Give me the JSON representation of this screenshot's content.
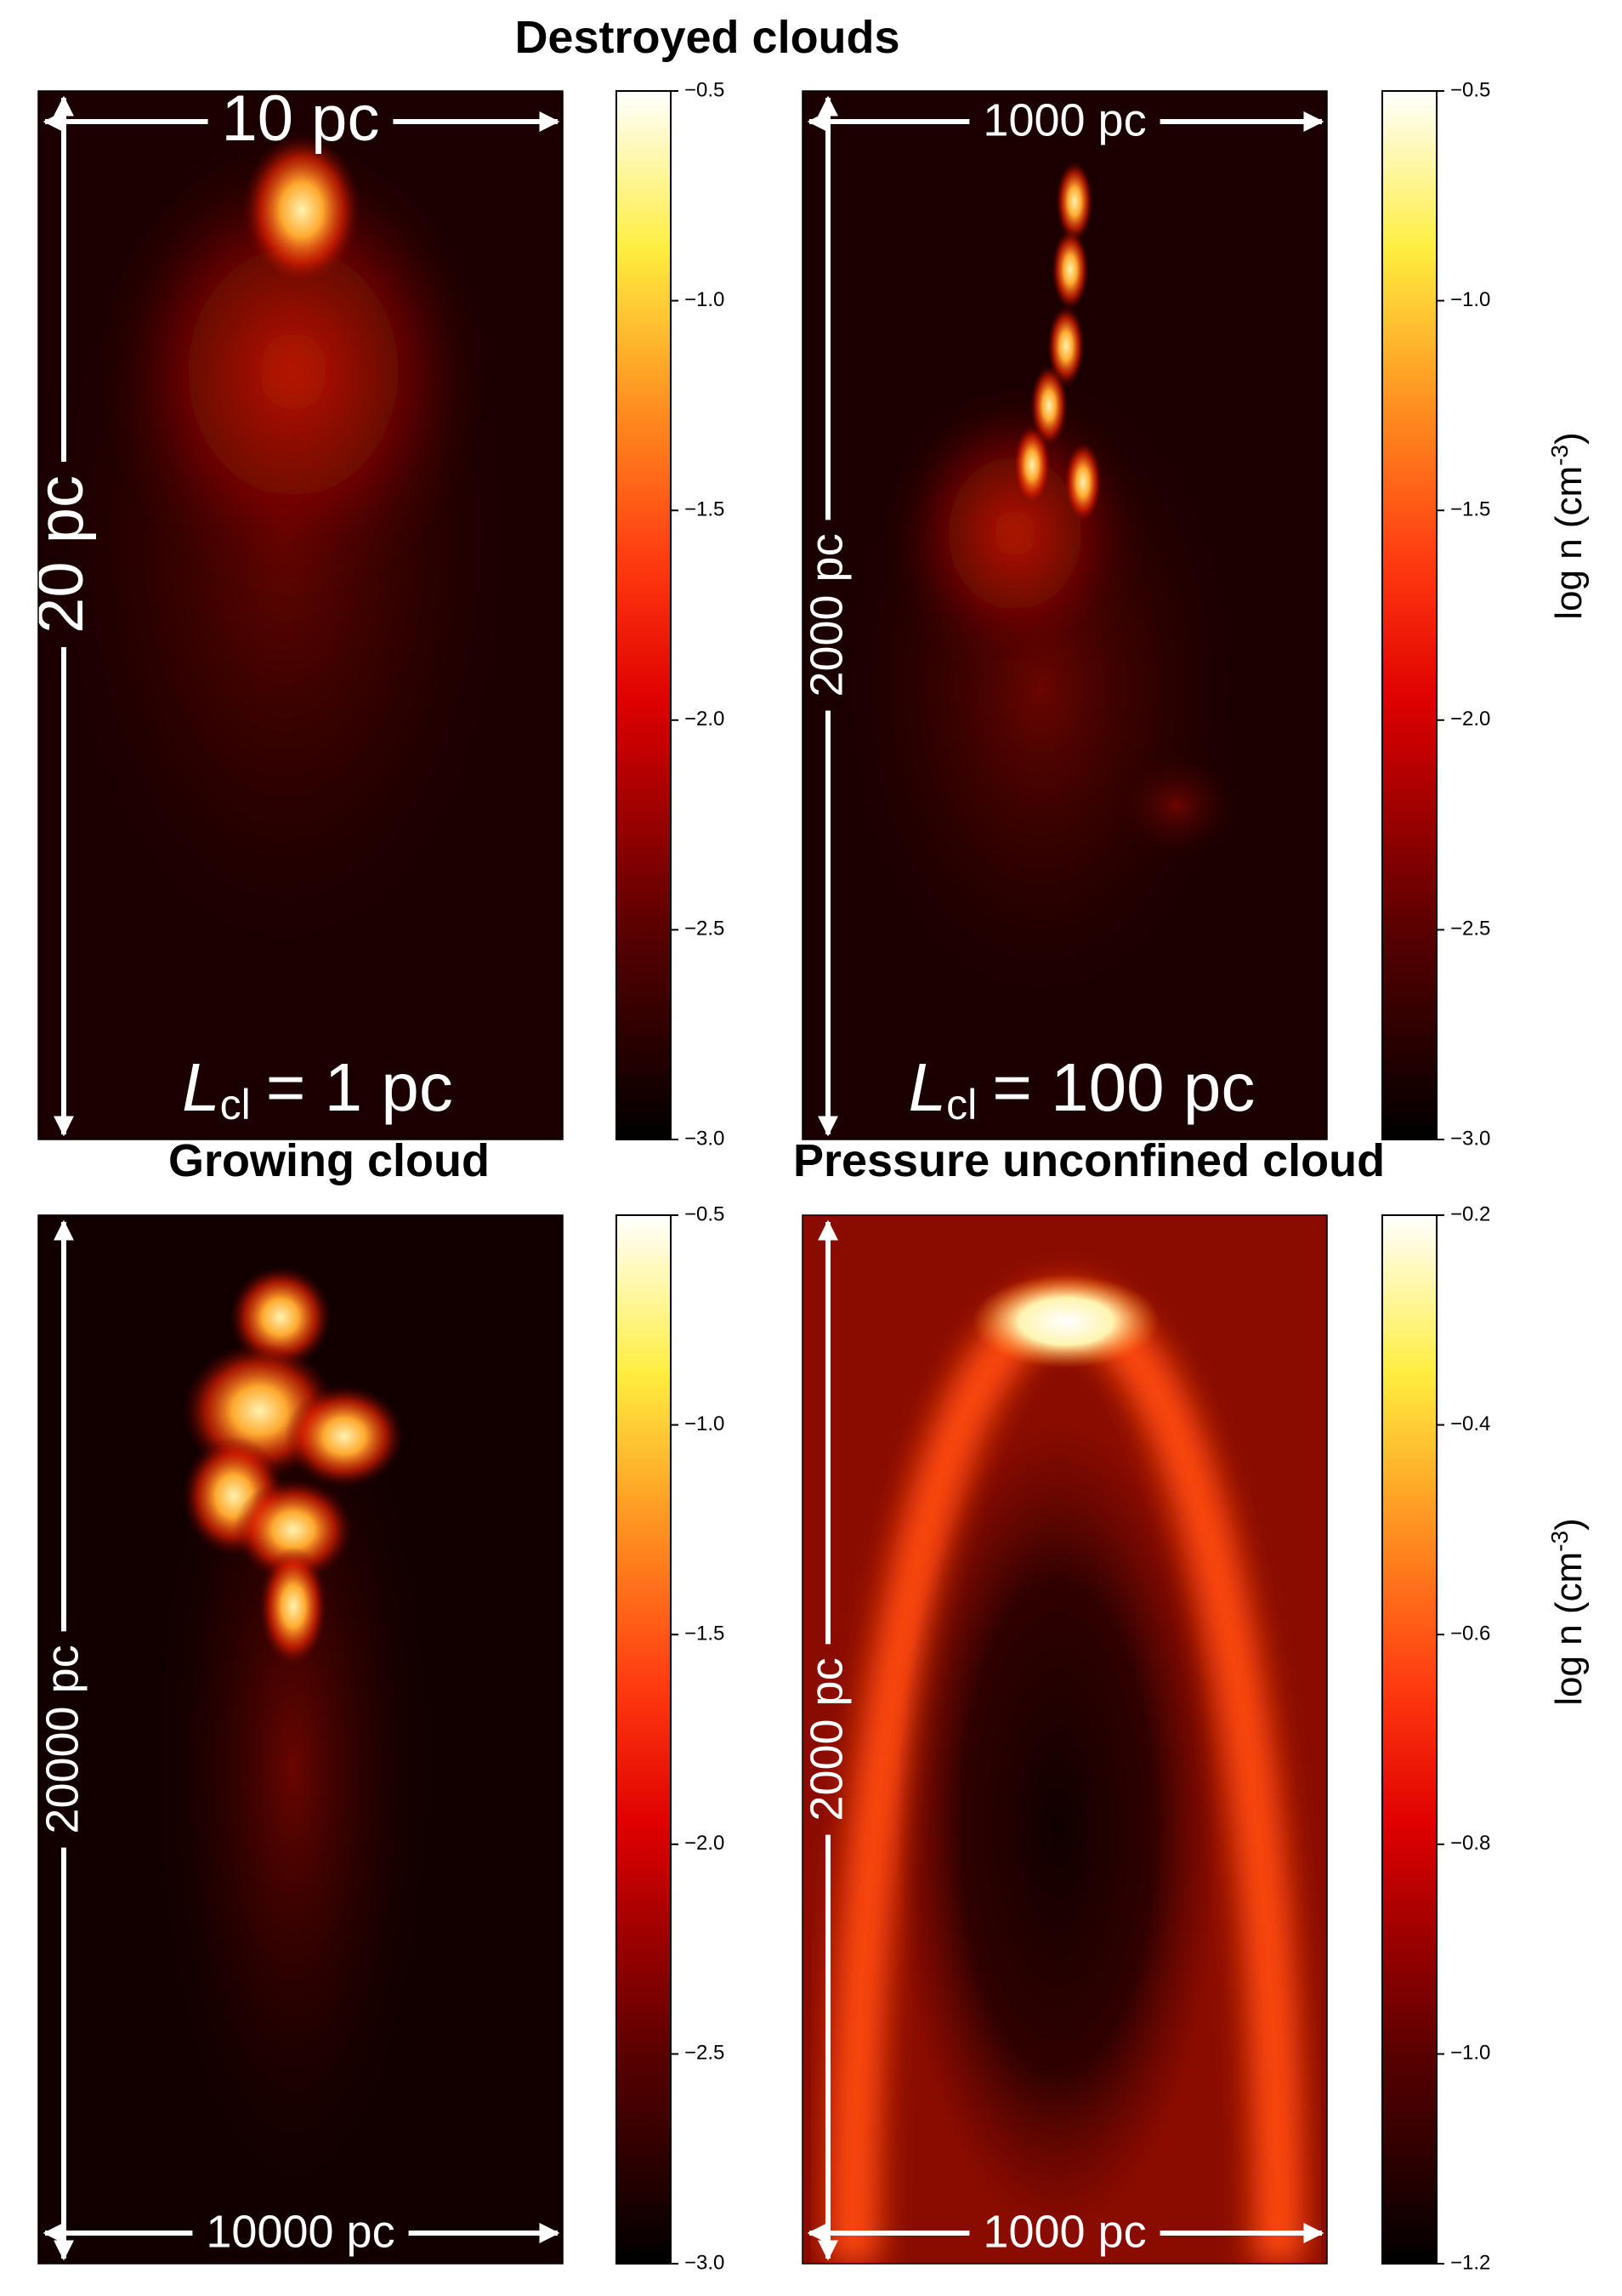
{
  "titles": [
    "Destroyed clouds",
    "Growing cloud",
    "Pressure unconfined cloud"
  ],
  "panels": [
    {
      "width_label": "10 pc",
      "height_label": "20 pc",
      "size_label": {
        "symbol": "L",
        "subscript": "cl",
        "text": "= 1 pc"
      },
      "colorbar": {
        "lim": [
          -3.0,
          -0.5
        ],
        "ticks": [
          {
            "value": -3.0,
            "label": "−3.0"
          },
          {
            "value": -2.5,
            "label": "−2.5"
          },
          {
            "value": -2.0,
            "label": "−2.0"
          },
          {
            "value": -1.5,
            "label": "−1.5"
          },
          {
            "value": -1.0,
            "label": "−1.0"
          },
          {
            "value": -0.5,
            "label": "−0.5"
          }
        ]
      }
    },
    {
      "width_label": "1000 pc",
      "height_label": "2000 pc",
      "size_label": {
        "symbol": "L",
        "subscript": "cl",
        "text": "= 100 pc"
      },
      "colorbar": {
        "lim": [
          -3.0,
          -0.5
        ],
        "ticks": [
          {
            "value": -3.0,
            "label": "−3.0"
          },
          {
            "value": -2.5,
            "label": "−2.5"
          },
          {
            "value": -2.0,
            "label": "−2.0"
          },
          {
            "value": -1.5,
            "label": "−1.5"
          },
          {
            "value": -1.0,
            "label": "−1.0"
          },
          {
            "value": -0.5,
            "label": "−0.5"
          }
        ],
        "label": {
          "text": "log n (cm",
          "superscript": "-3",
          "close": ")"
        }
      }
    },
    {
      "width_label": "10000 pc",
      "height_label": "20000 pc",
      "colorbar": {
        "lim": [
          -3.0,
          -0.5
        ],
        "ticks": [
          {
            "value": -3.0,
            "label": "−3.0"
          },
          {
            "value": -2.5,
            "label": "−2.5"
          },
          {
            "value": -2.0,
            "label": "−2.0"
          },
          {
            "value": -1.5,
            "label": "−1.5"
          },
          {
            "value": -1.0,
            "label": "−1.0"
          },
          {
            "value": -0.5,
            "label": "−0.5"
          }
        ]
      }
    },
    {
      "width_label": "1000 pc",
      "height_label": "2000 pc",
      "colorbar": {
        "lim": [
          -1.2,
          -0.2
        ],
        "ticks": [
          {
            "value": -1.2,
            "label": "−1.2"
          },
          {
            "value": -1.0,
            "label": "−1.0"
          },
          {
            "value": -0.8,
            "label": "−0.8"
          },
          {
            "value": -0.6,
            "label": "−0.6"
          },
          {
            "value": -0.4,
            "label": "−0.4"
          },
          {
            "value": -0.2,
            "label": "−0.2"
          }
        ],
        "label": {
          "text": "log n (cm",
          "superscript": "-3",
          "close": ")"
        }
      }
    }
  ]
}
